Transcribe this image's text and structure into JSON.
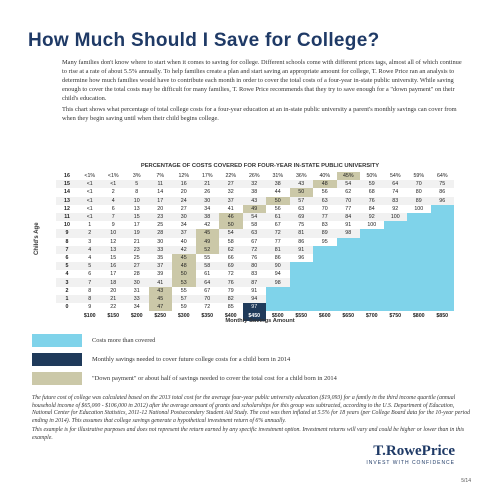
{
  "title": "How Much Should I Save for College?",
  "intro": [
    "Many families don't know where to start when it comes to saving for college. Different schools come with different prices tags, almost all of which continue to rise at a rate of about 5.5% annually. To help families create a plan and start saving an appropriate amount for college, T. Rowe Price ran an analysis to determine how much families would have to contribute each month in order to cover the total costs of a four-year in-state public university. While saving enough to cover the total costs may be difficult for many families, T. Rowe Price recommends that they try to save enough for a \"down payment\" on their child's education.",
    "This chart shows what percentage of total college costs for a four-year education at an in-state public university a parent's monthly savings can cover from when they begin saving until when their child begins college."
  ],
  "table": {
    "header": "PERCENTAGE OF COSTS COVERED FOR FOUR-YEAR IN-STATE PUBLIC UNIVERSITY",
    "y_label": "Child's Age",
    "x_label": "Monthly Savings Amount",
    "columns": [
      "$100",
      "$150",
      "$200",
      "$250",
      "$300",
      "$350",
      "$400",
      "$450",
      "$500",
      "$550",
      "$600",
      "$650",
      "$700",
      "$750",
      "$800",
      "$850"
    ],
    "rows": [
      {
        "age": "16",
        "cells": [
          "<1%",
          "<1%",
          "3%",
          "7%",
          "12%",
          "17%",
          "22%",
          "26%",
          "31%",
          "36%",
          "40%",
          "45%",
          "50%",
          "54%",
          "59%",
          "64%"
        ]
      },
      {
        "age": "15",
        "cells": [
          "<1",
          "<1",
          "5",
          "11",
          "16",
          "21",
          "27",
          "32",
          "38",
          "43",
          "48",
          "54",
          "59",
          "64",
          "70",
          "75"
        ]
      },
      {
        "age": "14",
        "cells": [
          "<1",
          "2",
          "8",
          "14",
          "20",
          "26",
          "32",
          "38",
          "44",
          "50",
          "56",
          "62",
          "68",
          "74",
          "80",
          "86"
        ]
      },
      {
        "age": "13",
        "cells": [
          "<1",
          "4",
          "10",
          "17",
          "24",
          "30",
          "37",
          "43",
          "50",
          "57",
          "63",
          "70",
          "76",
          "83",
          "89",
          "96"
        ]
      },
      {
        "age": "12",
        "cells": [
          "<1",
          "6",
          "13",
          "20",
          "27",
          "34",
          "41",
          "49",
          "56",
          "63",
          "70",
          "77",
          "84",
          "92",
          "100"
        ]
      },
      {
        "age": "11",
        "cells": [
          "<1",
          "7",
          "15",
          "23",
          "30",
          "38",
          "46",
          "54",
          "61",
          "69",
          "77",
          "84",
          "92",
          "100"
        ]
      },
      {
        "age": "10",
        "cells": [
          "1",
          "9",
          "17",
          "25",
          "34",
          "42",
          "50",
          "58",
          "67",
          "75",
          "83",
          "91",
          "100"
        ]
      },
      {
        "age": "9",
        "cells": [
          "2",
          "10",
          "19",
          "28",
          "37",
          "45",
          "54",
          "63",
          "72",
          "81",
          "89",
          "98"
        ]
      },
      {
        "age": "8",
        "cells": [
          "3",
          "12",
          "21",
          "30",
          "40",
          "49",
          "58",
          "67",
          "77",
          "86",
          "95"
        ]
      },
      {
        "age": "7",
        "cells": [
          "4",
          "13",
          "23",
          "33",
          "42",
          "52",
          "62",
          "72",
          "81",
          "91"
        ]
      },
      {
        "age": "6",
        "cells": [
          "4",
          "15",
          "25",
          "35",
          "45",
          "55",
          "66",
          "76",
          "86",
          "96"
        ]
      },
      {
        "age": "5",
        "cells": [
          "5",
          "16",
          "27",
          "37",
          "48",
          "58",
          "69",
          "80",
          "90"
        ]
      },
      {
        "age": "4",
        "cells": [
          "6",
          "17",
          "28",
          "39",
          "50",
          "61",
          "72",
          "83",
          "94"
        ]
      },
      {
        "age": "3",
        "cells": [
          "7",
          "18",
          "30",
          "41",
          "53",
          "64",
          "76",
          "87",
          "98"
        ]
      },
      {
        "age": "2",
        "cells": [
          "8",
          "20",
          "31",
          "43",
          "55",
          "67",
          "79",
          "91"
        ]
      },
      {
        "age": "1",
        "cells": [
          "8",
          "21",
          "33",
          "45",
          "57",
          "70",
          "82",
          "94"
        ]
      },
      {
        "age": "0",
        "cells": [
          "9",
          "22",
          "34",
          "47",
          "59",
          "72",
          "85",
          "97"
        ]
      }
    ]
  },
  "legend": [
    "Costs more than covered",
    "Monthly savings needed to cover future college costs for a child born in 2014",
    "\"Down payment\" or about half of savings needed to cover the total cost for a child born in 2014"
  ],
  "footnotes": [
    "The future cost of college was calculated based on the 2013 total cost for the average four-year public university education ($19,093) for a family in the third income quartile (annual household income of $65,000 - $106,000 in 2012) after the average amount of grants and scholarships for this group was subtracted, according to the U.S. Department of Education, National Center for Education Statistics, 2011-12 National Postsecondary Student Aid Study. The cost was then inflated at 5.5% for 18 years (per College Board data for the 10-year period ending in 2014). This assumes that college savings generate a hypothetical investment return of 6% annually.",
    "This example is for illustrative purposes and does not represent the return earned by any specific investment option. Investment returns will vary and could be higher or lower than in this example."
  ],
  "logo": {
    "name": "T.RowePrice",
    "tagline": "INVEST WITH CONFIDENCE"
  },
  "page_number": "5/14"
}
